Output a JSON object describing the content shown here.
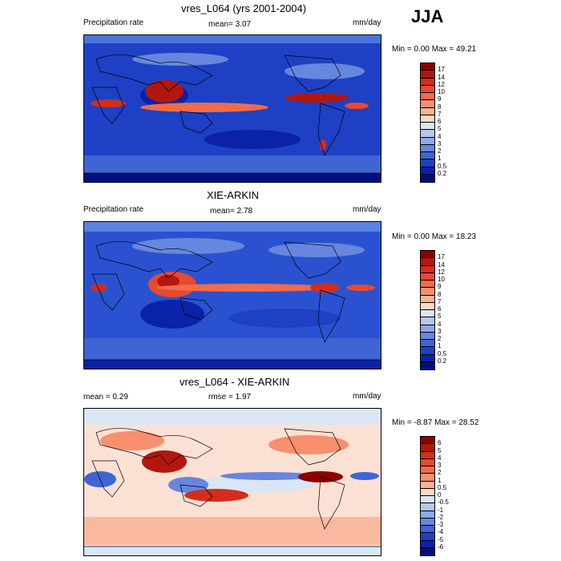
{
  "season": "JJA",
  "panels": [
    {
      "title": "vres_L064 (yrs 2001-2004)",
      "left_label": "Precipitation rate",
      "center_label": "mean=   3.07",
      "units": "mm/day",
      "minmax": "Min =   0.00 Max =  49.21",
      "colorbar_labels": [
        "17",
        "14",
        "12",
        "10",
        "9",
        "8",
        "7",
        "6",
        "5",
        "4",
        "3",
        "2",
        "1",
        "0.5",
        "0.2"
      ],
      "colorbar_colors": [
        "#8b0000",
        "#b2170d",
        "#d42d1a",
        "#e8492f",
        "#f26b4a",
        "#f88f6e",
        "#fbb296",
        "#fdd9c3",
        "#dbe6f5",
        "#b5c8ee",
        "#8ea9e6",
        "#6687dd",
        "#3f64d4",
        "#1e40c4",
        "#0a22a6",
        "#00107a"
      ],
      "colors": {
        "background": "#1e40c4",
        "band": "#4a74dc"
      }
    },
    {
      "title": "XIE-ARKIN",
      "left_label": "Precipitation rate",
      "center_label": "mean=   2.78",
      "units": "mm/day",
      "minmax": "Min =   0.00 Max =  18.23",
      "colorbar_labels": [
        "17",
        "14",
        "12",
        "10",
        "9",
        "8",
        "7",
        "6",
        "5",
        "4",
        "3",
        "2",
        "1",
        "0.5",
        "0.2"
      ],
      "colorbar_colors": [
        "#8b0000",
        "#b2170d",
        "#d42d1a",
        "#e8492f",
        "#f26b4a",
        "#f88f6e",
        "#fbb296",
        "#fdd9c3",
        "#dbe6f5",
        "#b5c8ee",
        "#8ea9e6",
        "#6687dd",
        "#3f64d4",
        "#1e40c4",
        "#0a22a6",
        "#00107a"
      ],
      "colors": {
        "background": "#2a52d0",
        "band": "#5a82e0"
      }
    },
    {
      "title": "vres_L064 - XIE-ARKIN",
      "left_label": "mean =   0.29",
      "center_label": "rmse =   1.97",
      "units": "mm/day",
      "minmax": "Min =  -8.87 Max =  28.52",
      "colorbar_labels": [
        "6",
        "5",
        "4",
        "3",
        "2",
        "1",
        "0.5",
        "0",
        "-0.5",
        "-1",
        "-2",
        "-3",
        "-4",
        "-5",
        "-6"
      ],
      "colorbar_colors": [
        "#8b0000",
        "#b2170d",
        "#d42d1a",
        "#e8492f",
        "#f26b4a",
        "#f88f6e",
        "#fbb296",
        "#fdd9c3",
        "#dbe6f5",
        "#b5c8ee",
        "#8ea9e6",
        "#6687dd",
        "#3f64d4",
        "#1e40c4",
        "#0a22a6",
        "#00107a"
      ],
      "colors": {
        "background": "#f6c7b2",
        "band": "#dbe6f5"
      }
    }
  ]
}
